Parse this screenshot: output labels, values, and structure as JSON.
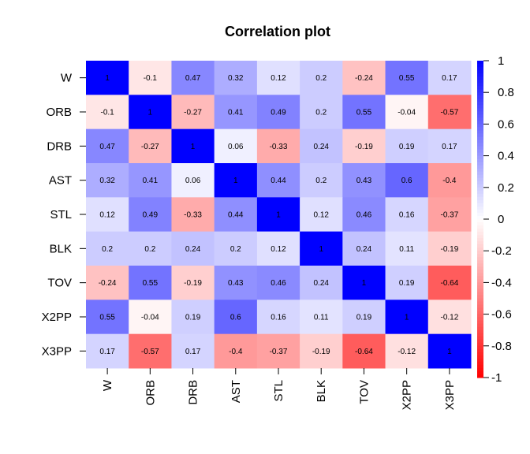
{
  "chart_data": {
    "type": "heatmap",
    "title": "Correlation plot",
    "xlabel": "",
    "ylabel": "",
    "variables": [
      "W",
      "ORB",
      "DRB",
      "AST",
      "STL",
      "BLK",
      "TOV",
      "X2PP",
      "X3PP"
    ],
    "matrix": [
      [
        1,
        -0.1,
        0.47,
        0.32,
        0.12,
        0.2,
        -0.24,
        0.55,
        0.17
      ],
      [
        -0.1,
        1,
        -0.27,
        0.41,
        0.49,
        0.2,
        0.55,
        -0.04,
        -0.57
      ],
      [
        0.47,
        -0.27,
        1,
        0.06,
        -0.33,
        0.24,
        -0.19,
        0.19,
        0.17
      ],
      [
        0.32,
        0.41,
        0.06,
        1,
        0.44,
        0.2,
        0.43,
        0.6,
        -0.4
      ],
      [
        0.12,
        0.49,
        -0.33,
        0.44,
        1,
        0.12,
        0.46,
        0.16,
        -0.37
      ],
      [
        0.2,
        0.2,
        0.24,
        0.2,
        0.12,
        1,
        0.24,
        0.11,
        -0.19
      ],
      [
        -0.24,
        0.55,
        -0.19,
        0.43,
        0.46,
        0.24,
        1,
        0.19,
        -0.64
      ],
      [
        0.55,
        -0.04,
        0.19,
        0.6,
        0.16,
        0.11,
        0.19,
        1,
        -0.12
      ],
      [
        0.17,
        -0.57,
        0.17,
        -0.4,
        -0.37,
        -0.19,
        -0.64,
        -0.12,
        1
      ]
    ],
    "color_scale": {
      "range": [
        -1,
        1
      ],
      "low_color": "#ff0000",
      "mid_color": "#ffffff",
      "high_color": "#0000ff",
      "ticks": [
        1,
        0.8,
        0.6,
        0.4,
        0.2,
        0,
        -0.2,
        -0.4,
        -0.6,
        -0.8,
        -1
      ],
      "tick_labels": [
        "1",
        "0.8",
        "0.6",
        "0.4",
        "0.2",
        "0",
        "-0.2",
        "-0.4",
        "-0.6",
        "-0.8",
        "-1"
      ]
    },
    "legend_placement": "right",
    "grid": false
  }
}
